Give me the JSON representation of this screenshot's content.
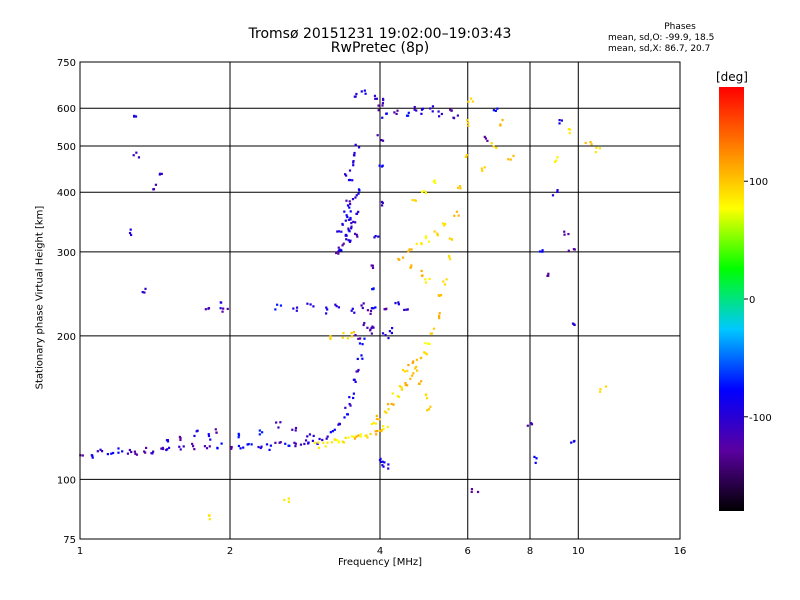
{
  "title_line1": "Tromsø 20151231 19:02:00–19:03:43",
  "title_line2": "RwPretec (8p)",
  "stats": {
    "heading": "Phases",
    "o_line": "mean, sd,O: -99.9, 18.5",
    "x_line": "mean, sd,X: 86.7, 20.7"
  },
  "colorbar": {
    "unit": "[deg]",
    "ticks": [
      "100",
      "0",
      "-100"
    ],
    "tick_values": [
      100,
      0,
      -100
    ],
    "range": [
      -180,
      180
    ],
    "colors": [
      "#000000",
      "#5a00a0",
      "#0000ff",
      "#00c8ff",
      "#00ff00",
      "#ffff00",
      "#ff8000",
      "#ff0000"
    ]
  },
  "chart_data": {
    "type": "scatter",
    "title": "Tromsø 20151231 19:02:00–19:03:43 RwPretec (8p)",
    "xlabel": "Frequency [MHz]",
    "ylabel": "Stationary phase Virtual Height [km]",
    "xscale": "log",
    "yscale": "log",
    "xlim": [
      1,
      16
    ],
    "ylim": [
      75,
      750
    ],
    "x_ticks": [
      1,
      2,
      4,
      6,
      8,
      10,
      16
    ],
    "x_tick_labels": [
      "1",
      "2",
      "4",
      "6",
      "8",
      "10",
      "16"
    ],
    "y_ticks": [
      75,
      100,
      200,
      300,
      400,
      500,
      600,
      750
    ],
    "y_tick_labels": [
      "75",
      "100",
      "200",
      "300",
      "400",
      "500",
      "600",
      "750"
    ],
    "grid": true,
    "color_encoding": "phase [deg]",
    "series": [
      {
        "mode": "O",
        "points": [
          [
            1.0,
            113
          ],
          [
            1.05,
            112
          ],
          [
            1.1,
            114
          ],
          [
            1.15,
            113
          ],
          [
            1.2,
            115
          ],
          [
            1.25,
            114
          ],
          [
            1.3,
            113
          ],
          [
            1.35,
            115
          ],
          [
            1.4,
            114
          ],
          [
            1.45,
            116
          ],
          [
            1.5,
            115
          ],
          [
            1.6,
            116
          ],
          [
            1.7,
            117
          ],
          [
            1.8,
            116
          ],
          [
            1.9,
            118
          ],
          [
            2.0,
            117
          ],
          [
            2.1,
            118
          ],
          [
            2.2,
            117
          ],
          [
            2.3,
            118
          ],
          [
            2.4,
            117
          ],
          [
            2.5,
            118
          ],
          [
            2.6,
            118
          ],
          [
            2.7,
            118
          ],
          [
            2.8,
            119
          ],
          [
            2.9,
            119
          ],
          [
            3.0,
            120
          ],
          [
            1.5,
            120
          ],
          [
            1.6,
            122
          ],
          [
            1.7,
            125
          ],
          [
            1.8,
            123
          ],
          [
            1.9,
            127
          ],
          [
            2.1,
            124
          ],
          [
            2.3,
            126
          ],
          [
            2.5,
            130
          ],
          [
            2.7,
            128
          ],
          [
            2.9,
            125
          ],
          [
            3.1,
            122
          ],
          [
            3.2,
            126
          ],
          [
            3.3,
            130
          ],
          [
            3.4,
            135
          ],
          [
            3.45,
            142
          ],
          [
            3.5,
            150
          ],
          [
            3.55,
            160
          ],
          [
            3.6,
            170
          ],
          [
            3.65,
            180
          ],
          [
            3.7,
            195
          ],
          [
            3.75,
            210
          ],
          [
            3.8,
            225
          ],
          [
            3.85,
            250
          ],
          [
            3.9,
            280
          ],
          [
            3.95,
            320
          ],
          [
            4.0,
            380
          ],
          [
            4.0,
            450
          ],
          [
            4.0,
            520
          ],
          [
            4.0,
            600
          ],
          [
            3.3,
            300
          ],
          [
            3.35,
            310
          ],
          [
            3.4,
            320
          ],
          [
            3.45,
            330
          ],
          [
            3.5,
            340
          ],
          [
            3.55,
            350
          ],
          [
            3.4,
            360
          ],
          [
            3.5,
            370
          ],
          [
            3.45,
            380
          ],
          [
            3.55,
            390
          ],
          [
            3.6,
            400
          ],
          [
            3.5,
            420
          ],
          [
            3.45,
            440
          ],
          [
            3.5,
            460
          ],
          [
            3.55,
            480
          ],
          [
            3.6,
            500
          ],
          [
            3.3,
            330
          ],
          [
            3.4,
            345
          ],
          [
            3.5,
            355
          ],
          [
            3.6,
            365
          ],
          [
            3.35,
            305
          ],
          [
            3.45,
            315
          ],
          [
            3.55,
            325
          ],
          [
            2.5,
            230
          ],
          [
            2.7,
            228
          ],
          [
            2.9,
            232
          ],
          [
            3.1,
            226
          ],
          [
            3.3,
            230
          ],
          [
            3.5,
            225
          ],
          [
            3.7,
            232
          ],
          [
            3.9,
            230
          ],
          [
            4.1,
            228
          ],
          [
            4.3,
            232
          ],
          [
            4.5,
            230
          ],
          [
            1.8,
            230
          ],
          [
            1.9,
            232
          ],
          [
            1.95,
            228
          ],
          [
            4.1,
            580
          ],
          [
            4.3,
            590
          ],
          [
            4.5,
            585
          ],
          [
            4.7,
            595
          ],
          [
            4.9,
            590
          ],
          [
            5.1,
            600
          ],
          [
            5.3,
            585
          ],
          [
            5.5,
            590
          ],
          [
            5.7,
            580
          ],
          [
            3.6,
            640
          ],
          [
            3.7,
            650
          ],
          [
            3.9,
            630
          ],
          [
            4.0,
            620
          ],
          [
            4.0,
            110
          ],
          [
            4.05,
            108
          ],
          [
            4.1,
            107
          ],
          [
            1.25,
            330
          ],
          [
            1.3,
            580
          ],
          [
            1.3,
            480
          ],
          [
            1.35,
            250
          ],
          [
            1.4,
            410
          ],
          [
            1.45,
            440
          ],
          [
            3.6,
            200
          ],
          [
            3.8,
            205
          ],
          [
            3.9,
            210
          ],
          [
            4.1,
            200
          ],
          [
            4.2,
            205
          ],
          [
            8.0,
            130
          ],
          [
            8.2,
            110
          ],
          [
            8.5,
            300
          ],
          [
            8.7,
            270
          ],
          [
            9.0,
            400
          ],
          [
            9.2,
            560
          ],
          [
            9.5,
            330
          ],
          [
            9.7,
            300
          ],
          [
            9.8,
            120
          ],
          [
            9.8,
            210
          ],
          [
            6.2,
            95
          ],
          [
            6.5,
            520
          ],
          [
            6.8,
            600
          ]
        ]
      },
      {
        "mode": "X",
        "points": [
          [
            3.0,
            118
          ],
          [
            3.1,
            119
          ],
          [
            3.2,
            120
          ],
          [
            3.3,
            121
          ],
          [
            3.4,
            121
          ],
          [
            3.5,
            122
          ],
          [
            3.6,
            122
          ],
          [
            3.7,
            123
          ],
          [
            3.8,
            124
          ],
          [
            3.9,
            125
          ],
          [
            4.0,
            126
          ],
          [
            4.1,
            128
          ],
          [
            3.9,
            130
          ],
          [
            4.0,
            135
          ],
          [
            4.1,
            140
          ],
          [
            4.2,
            145
          ],
          [
            4.3,
            150
          ],
          [
            4.4,
            155
          ],
          [
            4.5,
            160
          ],
          [
            4.6,
            165
          ],
          [
            4.7,
            170
          ],
          [
            4.8,
            178
          ],
          [
            4.9,
            185
          ],
          [
            5.0,
            195
          ],
          [
            5.1,
            205
          ],
          [
            5.2,
            220
          ],
          [
            5.3,
            240
          ],
          [
            5.4,
            260
          ],
          [
            5.5,
            290
          ],
          [
            5.6,
            320
          ],
          [
            5.7,
            360
          ],
          [
            5.8,
            410
          ],
          [
            5.9,
            480
          ],
          [
            6.0,
            560
          ],
          [
            6.1,
            620
          ],
          [
            4.5,
            170
          ],
          [
            4.6,
            175
          ],
          [
            4.8,
            160
          ],
          [
            4.9,
            150
          ],
          [
            5.0,
            140
          ],
          [
            4.6,
            300
          ],
          [
            4.8,
            310
          ],
          [
            5.0,
            320
          ],
          [
            5.2,
            330
          ],
          [
            5.4,
            340
          ],
          [
            4.7,
            380
          ],
          [
            4.9,
            400
          ],
          [
            5.1,
            420
          ],
          [
            4.4,
            290
          ],
          [
            4.6,
            280
          ],
          [
            4.8,
            270
          ],
          [
            5.0,
            260
          ],
          [
            6.5,
            450
          ],
          [
            6.8,
            500
          ],
          [
            7.0,
            560
          ],
          [
            7.3,
            470
          ],
          [
            9.0,
            470
          ],
          [
            9.5,
            540
          ],
          [
            10.5,
            510
          ],
          [
            11.0,
            490
          ],
          [
            3.2,
            198
          ],
          [
            3.4,
            200
          ],
          [
            3.5,
            202
          ],
          [
            2.6,
            90
          ],
          [
            1.8,
            83
          ],
          [
            11.2,
            155
          ]
        ]
      }
    ]
  }
}
